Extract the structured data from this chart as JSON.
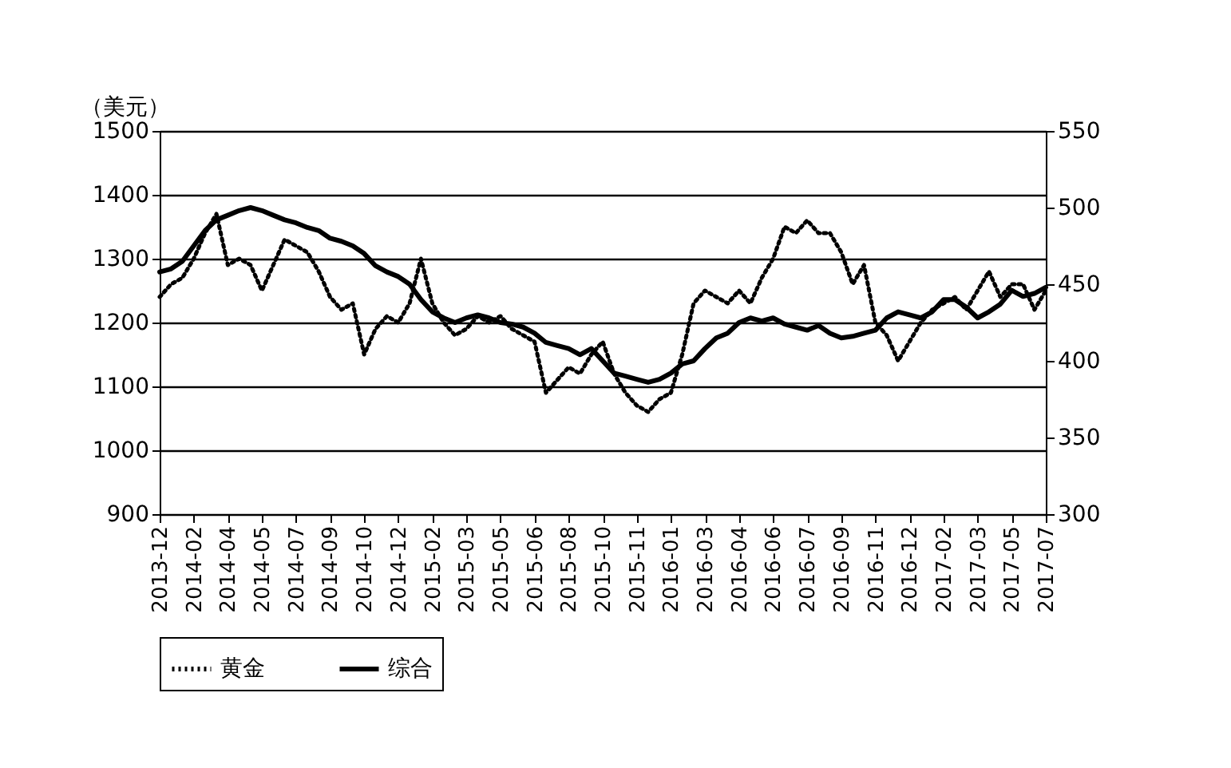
{
  "chart_data": {
    "type": "line",
    "ylabel": "（美元）",
    "categories": [
      "2013-12",
      null,
      null,
      "2014-02",
      null,
      null,
      "2014-04",
      null,
      null,
      "2014-05",
      null,
      null,
      "2014-07",
      null,
      null,
      "2014-09",
      null,
      null,
      "2014-10",
      null,
      null,
      "2014-12",
      null,
      null,
      "2015-02",
      null,
      null,
      "2015-03",
      null,
      null,
      "2015-05",
      null,
      null,
      "2015-06",
      null,
      null,
      "2015-08",
      null,
      null,
      "2015-10",
      null,
      null,
      "2015-11",
      null,
      null,
      "2016-01",
      null,
      null,
      "2016-03",
      null,
      null,
      "2016-04",
      null,
      null,
      "2016-06",
      null,
      null,
      "2016-07",
      null,
      null,
      "2016-09",
      null,
      null,
      "2016-11",
      null,
      null,
      "2016-12",
      null,
      null,
      "2017-02",
      null,
      null,
      "2017-03",
      null,
      null,
      "2017-05",
      null,
      null,
      "2017-07"
    ],
    "series": [
      {
        "name": "黄金",
        "color": "#000000",
        "line_style": "dotted",
        "values": [
          1240,
          1260,
          1270,
          1300,
          1340,
          1370,
          1290,
          1300,
          1290,
          1250,
          1290,
          1330,
          1320,
          1310,
          1280,
          1240,
          1220,
          1230,
          1150,
          1190,
          1210,
          1200,
          1230,
          1300,
          1230,
          1200,
          1180,
          1190,
          1210,
          1200,
          1210,
          1190,
          1180,
          1170,
          1090,
          1110,
          1130,
          1120,
          1150,
          1170,
          1120,
          1090,
          1070,
          1060,
          1080,
          1090,
          1150,
          1230,
          1250,
          1240,
          1230,
          1250,
          1230,
          1270,
          1300,
          1350,
          1340,
          1360,
          1340,
          1340,
          1310,
          1260,
          1290,
          1200,
          1180,
          1140,
          1170,
          1200,
          1220,
          1230,
          1240,
          1220,
          1250,
          1280,
          1240,
          1260,
          1260,
          1220,
          1250
        ]
      },
      {
        "name": "综合",
        "color": "#000000",
        "line_style": "solid",
        "axis": "y2",
        "values": [
          458,
          460,
          465,
          475,
          485,
          492,
          495,
          498,
          500,
          498,
          495,
          492,
          490,
          487,
          485,
          480,
          478,
          475,
          470,
          462,
          458,
          455,
          450,
          440,
          432,
          428,
          425,
          428,
          430,
          428,
          425,
          424,
          422,
          418,
          412,
          410,
          408,
          404,
          408,
          400,
          392,
          390,
          388,
          386,
          388,
          392,
          398,
          400,
          408,
          415,
          418,
          425,
          428,
          426,
          428,
          424,
          422,
          420,
          423,
          418,
          415,
          416,
          418,
          420,
          428,
          432,
          430,
          428,
          432,
          440,
          440,
          435,
          428,
          432,
          437,
          446,
          442,
          444,
          448
        ]
      }
    ],
    "ylim": [
      900,
      1500
    ],
    "yticks": [
      900,
      1000,
      1100,
      1200,
      1300,
      1400,
      1500
    ],
    "y2lim": [
      300,
      550
    ],
    "y2ticks": [
      300,
      350,
      400,
      450,
      500,
      550
    ],
    "grid": "y",
    "legend": "bottom"
  }
}
